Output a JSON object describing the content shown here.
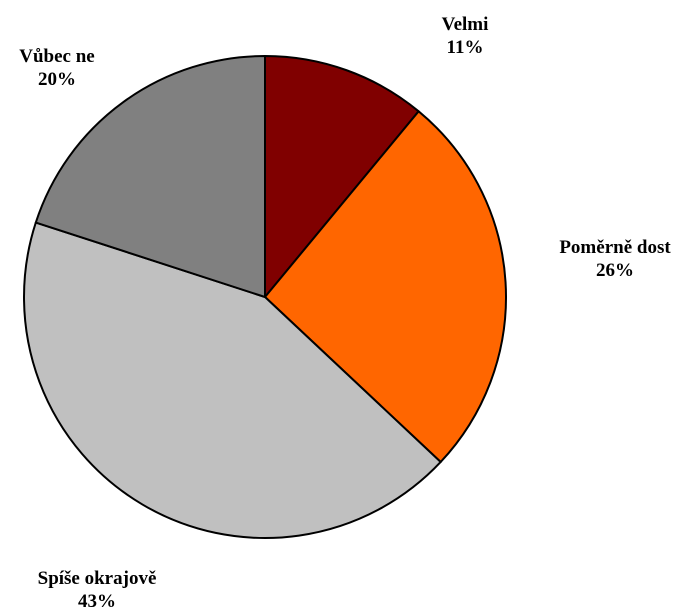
{
  "chart_data": {
    "type": "pie",
    "title": "",
    "slices": [
      {
        "label": "Velmi",
        "value": 11,
        "value_label": "11%",
        "color": "#800000"
      },
      {
        "label": "Poměrně dost",
        "value": 26,
        "value_label": "26%",
        "color": "#FF6600"
      },
      {
        "label": "Spíše okrajově",
        "value": 43,
        "value_label": "43%",
        "color": "#C0C0C0"
      },
      {
        "label": "Vůbec ne",
        "value": 20,
        "value_label": "20%",
        "color": "#808080"
      }
    ],
    "legend": "none",
    "start_angle": "12 o'clock",
    "direction": "clockwise"
  }
}
